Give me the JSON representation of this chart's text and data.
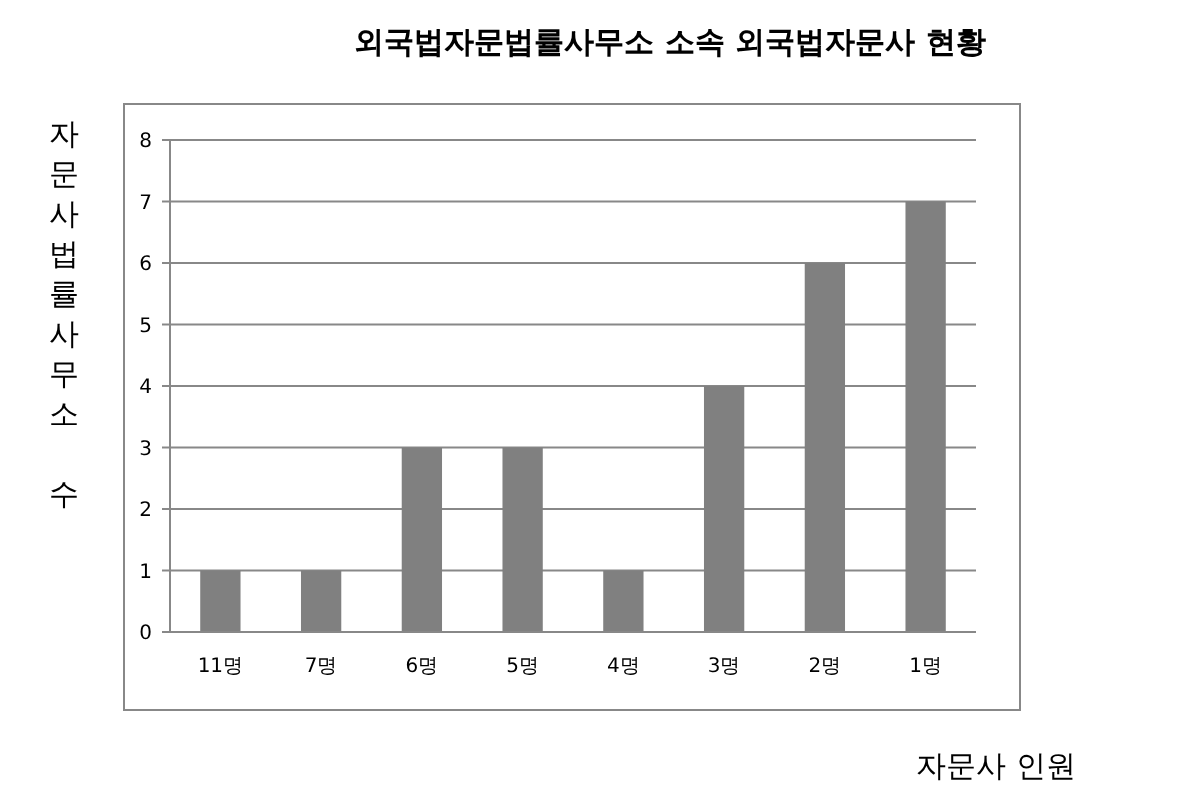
{
  "chart_data": {
    "type": "bar",
    "title": "외국법자문법률사무소 소속 외국법자문사 현황",
    "xlabel": "자문사 인원",
    "ylabel": "자문사법률사무소 수",
    "categories": [
      "11명",
      "7명",
      "6명",
      "5명",
      "4명",
      "3명",
      "2명",
      "1명"
    ],
    "values": [
      1,
      1,
      3,
      3,
      1,
      4,
      6,
      7
    ],
    "color": "#808080",
    "ylim": [
      0,
      8
    ],
    "yticks": [
      0,
      1,
      2,
      3,
      4,
      5,
      6,
      7,
      8
    ],
    "grid": "y"
  }
}
